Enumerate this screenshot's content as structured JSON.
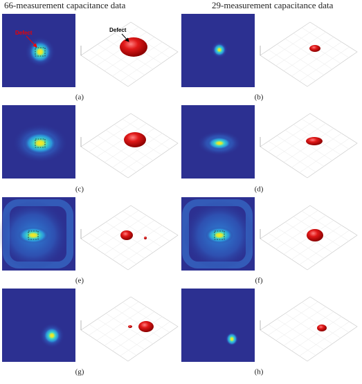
{
  "headers": [
    "66-measurement capacitance data",
    "29-measurement capacitance data"
  ],
  "panels": [
    "(a)",
    "(b)",
    "(c)",
    "(d)",
    "(e)",
    "(f)",
    "(g)",
    "(h)"
  ],
  "annotations": {
    "heatmap_defect": "Defect",
    "model_defect": "Defect"
  }
}
